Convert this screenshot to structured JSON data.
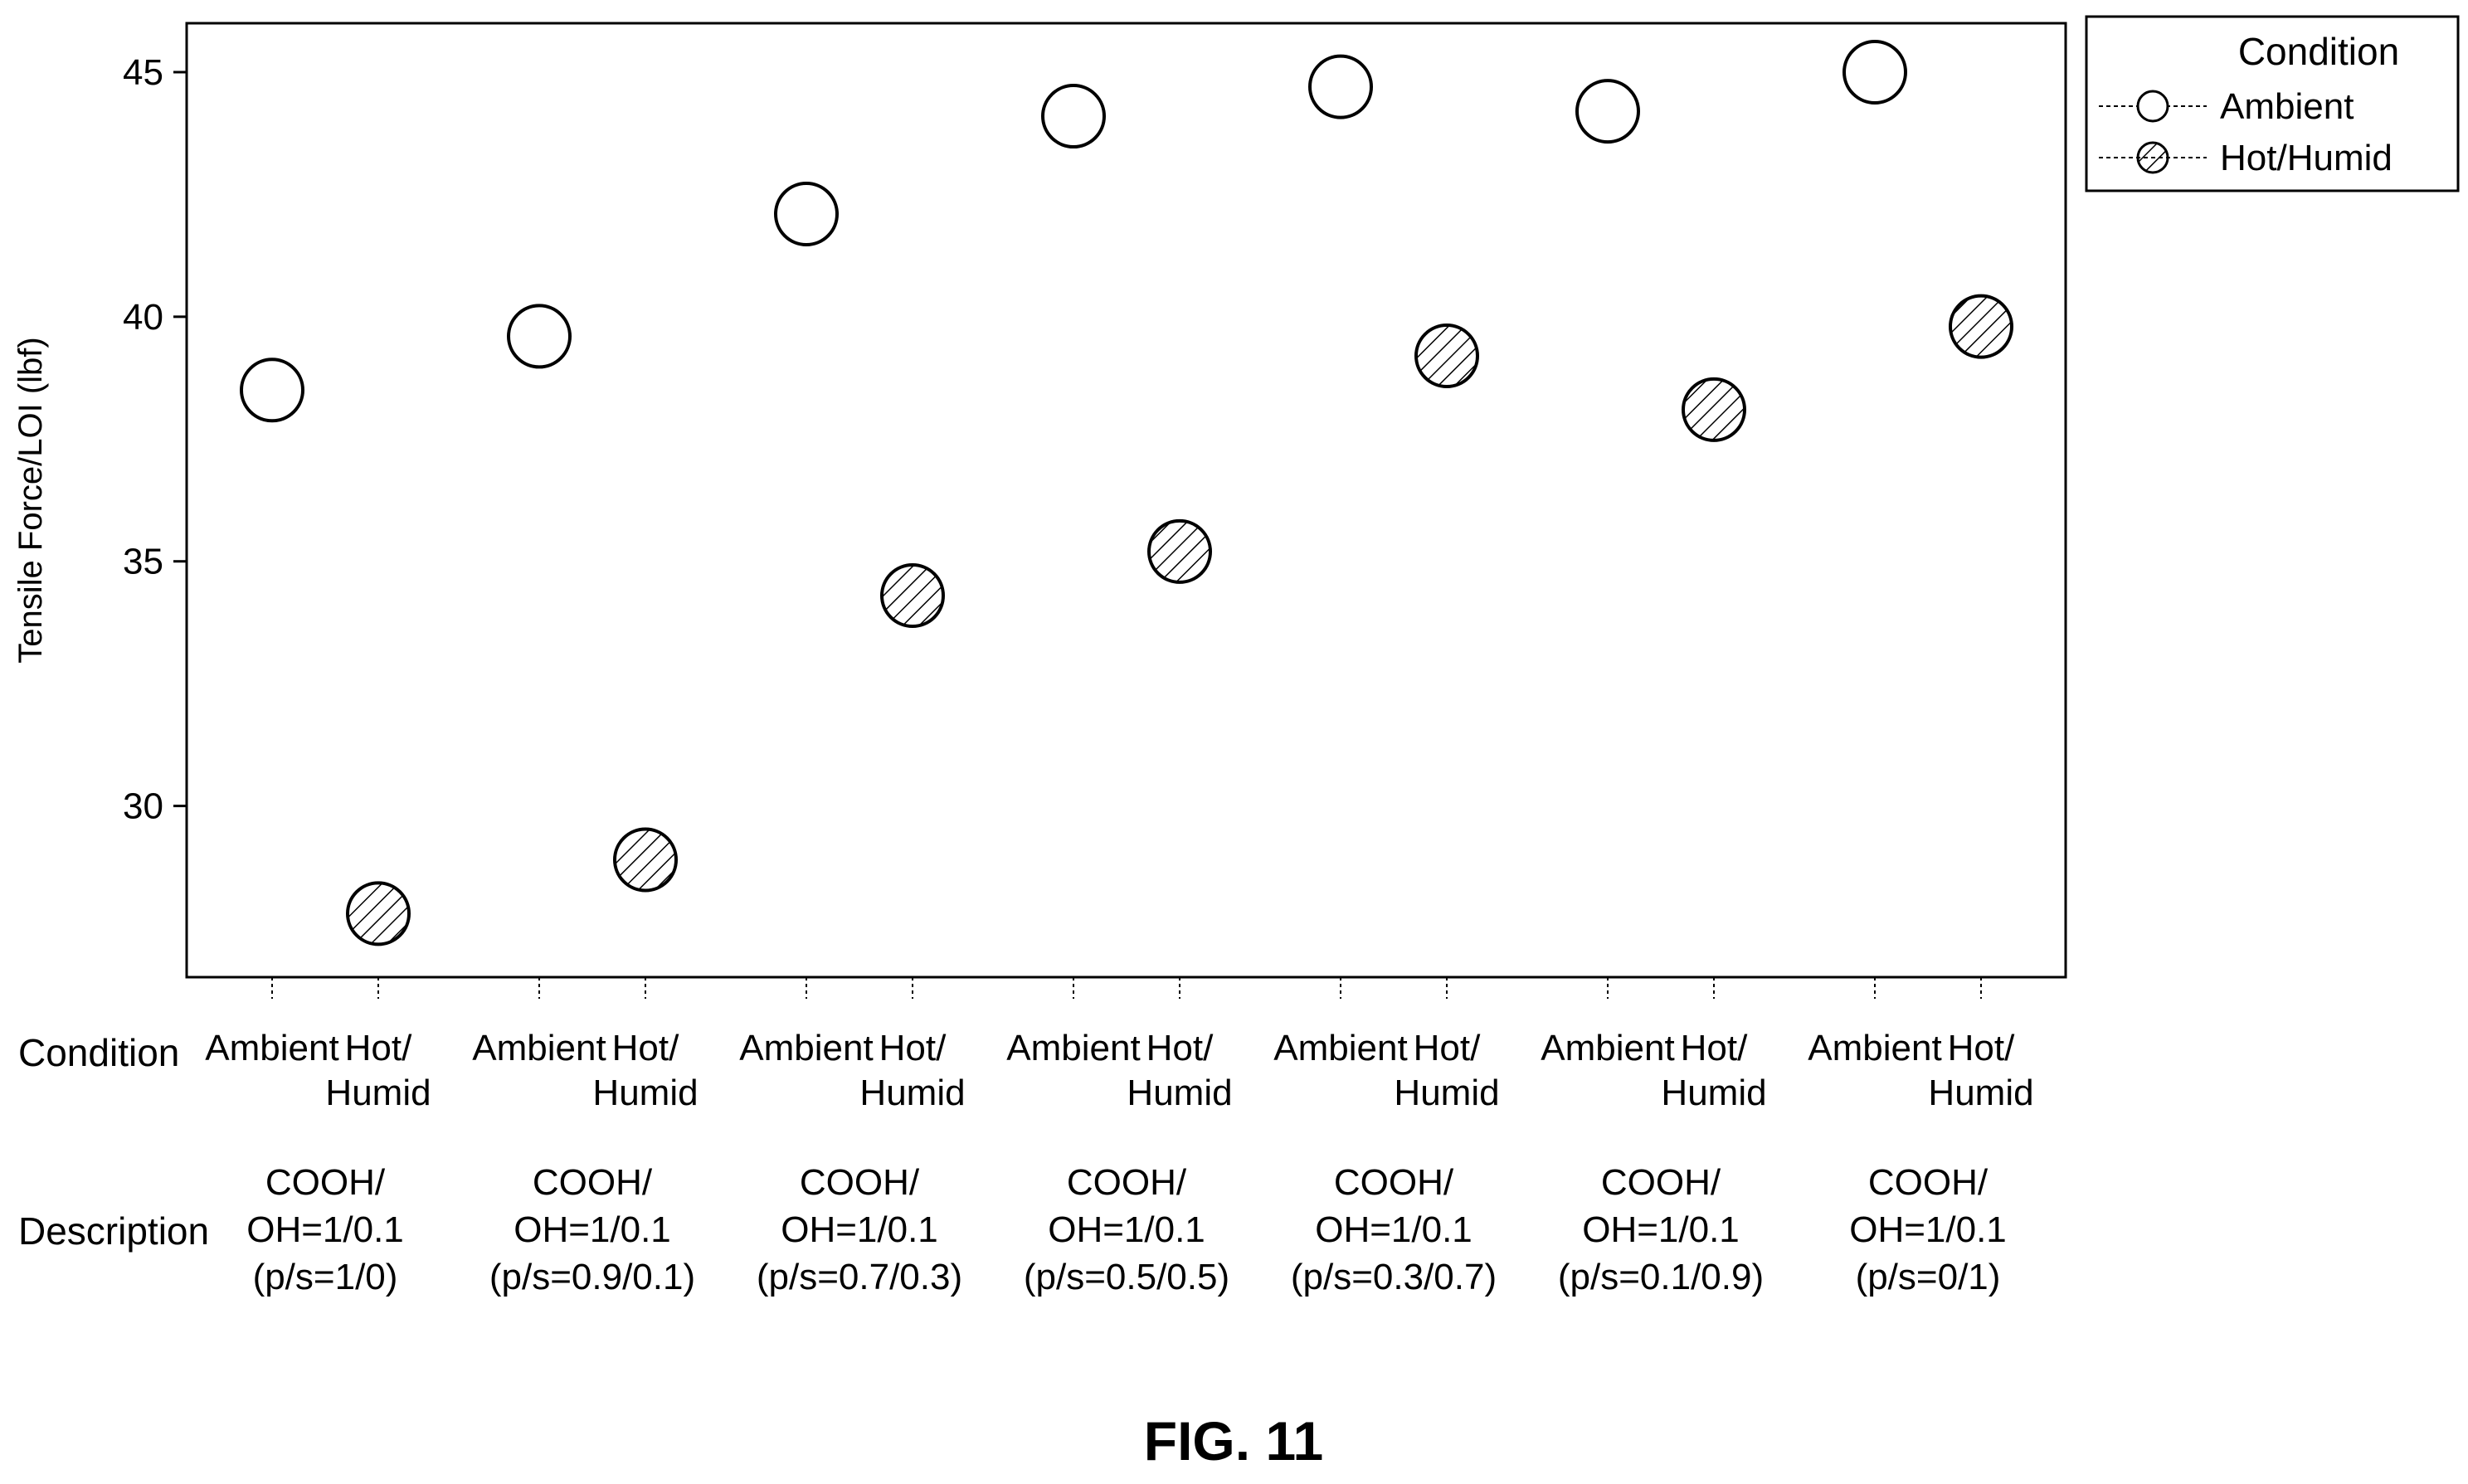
{
  "figure_label": "FIG. 11",
  "chart_data": {
    "type": "scatter",
    "ylabel": "Tensile Force/LOI (lbf)",
    "ylim": [
      26.5,
      46.0
    ],
    "yticks": [
      30,
      35,
      40,
      45
    ],
    "grid": false,
    "legend": {
      "title": "Condition",
      "placement": "top-right",
      "entries": [
        "Ambient",
        "Hot/Humid"
      ]
    },
    "row_labels": {
      "condition": "Condition",
      "description": "Description"
    },
    "condition_labels": {
      "ambient": [
        "Ambient"
      ],
      "hot_humid": [
        "Hot/",
        "Humid"
      ]
    },
    "groups": [
      {
        "description": [
          "COOH/",
          "OH=1/0.1",
          "(p/s=1/0)"
        ],
        "ambient": 38.5,
        "hot_humid": 27.8
      },
      {
        "description": [
          "COOH/",
          "OH=1/0.1",
          "(p/s=0.9/0.1)"
        ],
        "ambient": 39.6,
        "hot_humid": 28.9
      },
      {
        "description": [
          "COOH/",
          "OH=1/0.1",
          "(p/s=0.7/0.3)"
        ],
        "ambient": 42.1,
        "hot_humid": 34.3
      },
      {
        "description": [
          "COOH/",
          "OH=1/0.1",
          "(p/s=0.5/0.5)"
        ],
        "ambient": 44.1,
        "hot_humid": 35.2
      },
      {
        "description": [
          "COOH/",
          "OH=1/0.1",
          "(p/s=0.3/0.7)"
        ],
        "ambient": 44.7,
        "hot_humid": 39.2
      },
      {
        "description": [
          "COOH/",
          "OH=1/0.1",
          "(p/s=0.1/0.9)"
        ],
        "ambient": 44.2,
        "hot_humid": 38.1
      },
      {
        "description": [
          "COOH/",
          "OH=1/0.1",
          "(p/s=0/1)"
        ],
        "ambient": 45.0,
        "hot_humid": 39.8
      }
    ]
  }
}
